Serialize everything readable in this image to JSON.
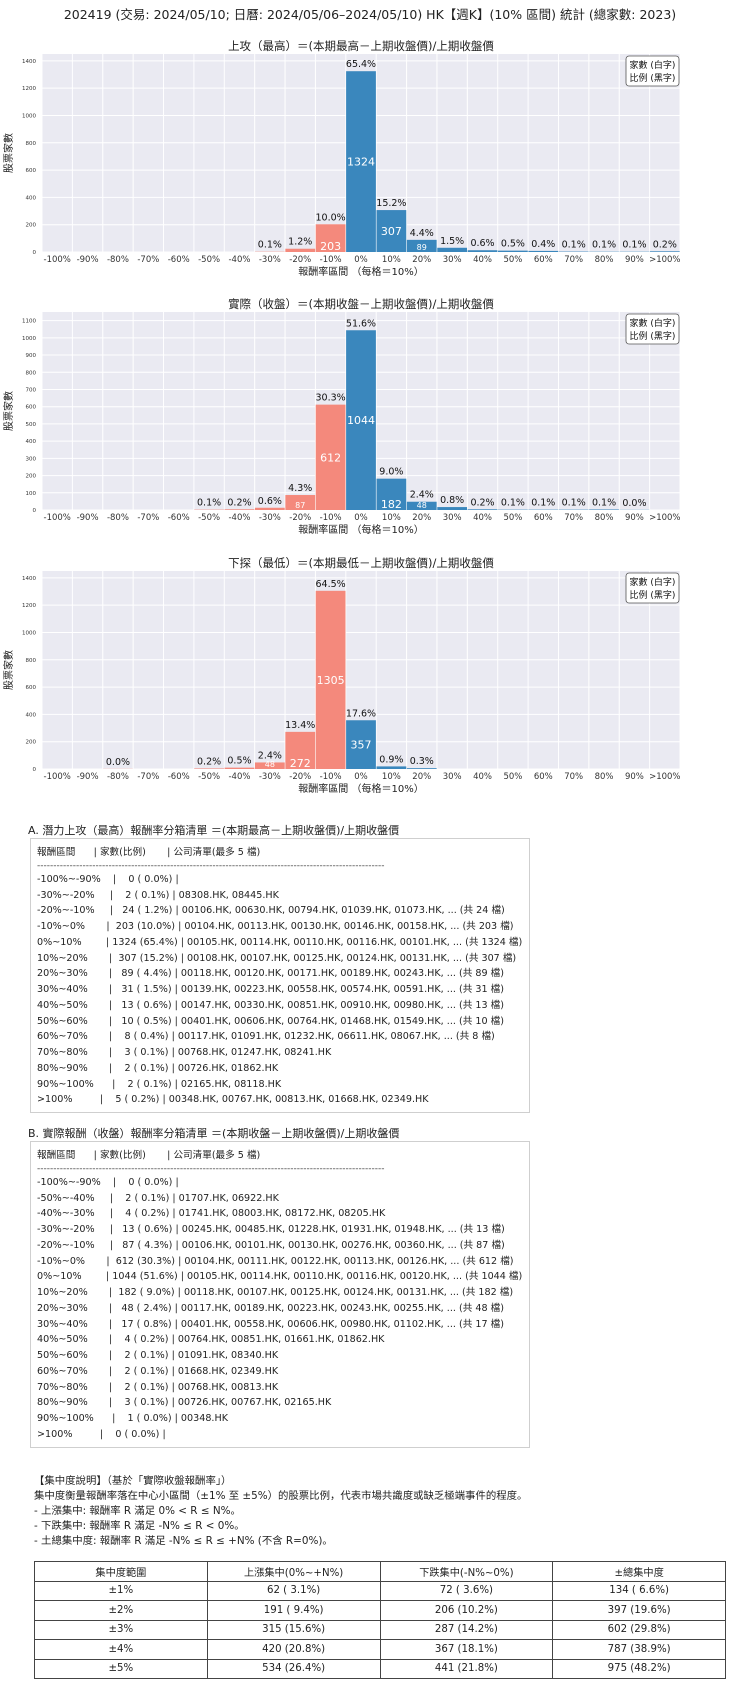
{
  "page_title": "202419 (交易: 2024/05/10; 日曆: 2024/05/06–2024/05/10) HK【週K】(10% 區間) 統計 (總家數: 2023)",
  "legend_lines": [
    "家數 (白字)",
    "比例 (黑字)"
  ],
  "colors": {
    "positive": "#3a87bd",
    "negative": "#f4897c",
    "plot_bg": "#eaeaf2"
  },
  "chart_data": [
    {
      "type": "bar",
      "title": "上攻（最高）＝(本期最高－上期收盤價)/上期收盤價",
      "xlabel": "報酬率區間 （每格＝10%）",
      "ylabel": "股票家數",
      "ylim": [
        0,
        1450
      ],
      "yticks": [
        0,
        200,
        400,
        600,
        800,
        1000,
        1200,
        1400
      ],
      "categories": [
        "-100%",
        "-90%",
        "-80%",
        "-70%",
        "-60%",
        "-50%",
        "-40%",
        "-30%",
        "-20%",
        "-10%",
        "0%",
        "10%",
        "20%",
        "30%",
        "40%",
        "50%",
        "60%",
        "70%",
        "80%",
        "90%",
        ">100%"
      ],
      "values": [
        0,
        0,
        0,
        0,
        0,
        0,
        0,
        2,
        24,
        203,
        1324,
        307,
        89,
        31,
        13,
        10,
        8,
        3,
        2,
        2,
        5
      ],
      "pct_labels": [
        "",
        "",
        "",
        "",
        "",
        "",
        "",
        "0.1%",
        "1.2%",
        "10.0%",
        "65.4%",
        "15.2%",
        "4.4%",
        "1.5%",
        "0.6%",
        "0.5%",
        "0.4%",
        "0.1%",
        "0.1%",
        "0.1%",
        "0.2%"
      ],
      "count_labels": [
        "",
        "",
        "",
        "",
        "",
        "",
        "",
        "",
        "",
        "203",
        "1324",
        "307",
        "89",
        "",
        "",
        "",
        "",
        "",
        "",
        "",
        ""
      ],
      "grid": true,
      "legend": "top-right"
    },
    {
      "type": "bar",
      "title": "實際（收盤）＝(本期收盤－上期收盤價)/上期收盤價",
      "xlabel": "報酬率區間 （每格＝10%）",
      "ylabel": "股票家數",
      "ylim": [
        0,
        1150
      ],
      "yticks": [
        0,
        100,
        200,
        300,
        400,
        500,
        600,
        700,
        800,
        900,
        1000,
        1100
      ],
      "categories": [
        "-100%",
        "-90%",
        "-80%",
        "-70%",
        "-60%",
        "-50%",
        "-40%",
        "-30%",
        "-20%",
        "-10%",
        "0%",
        "10%",
        "20%",
        "30%",
        "40%",
        "50%",
        "60%",
        "70%",
        "80%",
        "90%",
        ">100%"
      ],
      "values": [
        0,
        0,
        0,
        0,
        0,
        2,
        4,
        13,
        87,
        612,
        1044,
        182,
        48,
        17,
        4,
        2,
        2,
        2,
        3,
        1,
        0
      ],
      "pct_labels": [
        "",
        "",
        "",
        "",
        "",
        "0.1%",
        "0.2%",
        "0.6%",
        "4.3%",
        "30.3%",
        "51.6%",
        "9.0%",
        "2.4%",
        "0.8%",
        "0.2%",
        "0.1%",
        "0.1%",
        "0.1%",
        "0.1%",
        "0.0%",
        ""
      ],
      "count_labels": [
        "",
        "",
        "",
        "",
        "",
        "",
        "",
        "",
        "87",
        "612",
        "1044",
        "182",
        "48",
        "",
        "",
        "",
        "",
        "",
        "",
        "",
        ""
      ],
      "grid": true,
      "legend": "top-right"
    },
    {
      "type": "bar",
      "title": "下探（最低）＝(本期最低－上期收盤價)/上期收盤價",
      "xlabel": "報酬率區間 （每格＝10%）",
      "ylabel": "股票家數",
      "ylim": [
        0,
        1450
      ],
      "yticks": [
        0,
        200,
        400,
        600,
        800,
        1000,
        1200,
        1400
      ],
      "categories": [
        "-100%",
        "-90%",
        "-80%",
        "-70%",
        "-60%",
        "-50%",
        "-40%",
        "-30%",
        "-20%",
        "-10%",
        "0%",
        "10%",
        "20%",
        "30%",
        "40%",
        "50%",
        "60%",
        "70%",
        "80%",
        "90%",
        ">100%"
      ],
      "values": [
        0,
        0,
        1,
        0,
        0,
        4,
        10,
        48,
        272,
        1305,
        357,
        19,
        6,
        0,
        0,
        0,
        0,
        0,
        0,
        0,
        0
      ],
      "pct_labels": [
        "",
        "",
        "0.0%",
        "",
        "",
        "0.2%",
        "0.5%",
        "2.4%",
        "13.4%",
        "64.5%",
        "17.6%",
        "0.9%",
        "0.3%",
        "",
        "",
        "",
        "",
        "",
        "",
        "",
        ""
      ],
      "count_labels": [
        "",
        "",
        "",
        "",
        "",
        "",
        "",
        "48",
        "272",
        "1305",
        "357",
        "",
        "",
        "",
        "",
        "",
        "",
        "",
        "",
        "",
        ""
      ],
      "grid": true,
      "legend": "top-right"
    }
  ],
  "section_a": {
    "title": "A. 潛力上攻（最高）報酬率分箱清單 ＝(本期最高－上期收盤價)/上期收盤價",
    "header": "報酬區間      | 家數(比例)       | 公司清單(最多 5 檔)",
    "separator": "-----------------------------------------------------------------------------------------------------------",
    "rows": [
      "-100%~-90%    |    0 ( 0.0%) |",
      "-30%~-20%     |    2 ( 0.1%) | 08308.HK, 08445.HK",
      "-20%~-10%     |   24 ( 1.2%) | 00106.HK, 00630.HK, 00794.HK, 01039.HK, 01073.HK, ... (共 24 檔)",
      "-10%~0%       |  203 (10.0%) | 00104.HK, 00113.HK, 00130.HK, 00146.HK, 00158.HK, ... (共 203 檔)",
      "0%~10%        | 1324 (65.4%) | 00105.HK, 00114.HK, 00110.HK, 00116.HK, 00101.HK, ... (共 1324 檔)",
      "10%~20%       |  307 (15.2%) | 00108.HK, 00107.HK, 00125.HK, 00124.HK, 00131.HK, ... (共 307 檔)",
      "20%~30%       |   89 ( 4.4%) | 00118.HK, 00120.HK, 00171.HK, 00189.HK, 00243.HK, ... (共 89 檔)",
      "30%~40%       |   31 ( 1.5%) | 00139.HK, 00223.HK, 00558.HK, 00574.HK, 00591.HK, ... (共 31 檔)",
      "40%~50%       |   13 ( 0.6%) | 00147.HK, 00330.HK, 00851.HK, 00910.HK, 00980.HK, ... (共 13 檔)",
      "50%~60%       |   10 ( 0.5%) | 00401.HK, 00606.HK, 00764.HK, 01468.HK, 01549.HK, ... (共 10 檔)",
      "60%~70%       |    8 ( 0.4%) | 00117.HK, 01091.HK, 01232.HK, 06611.HK, 08067.HK, ... (共 8 檔)",
      "70%~80%       |    3 ( 0.1%) | 00768.HK, 01247.HK, 08241.HK",
      "80%~90%       |    2 ( 0.1%) | 00726.HK, 01862.HK",
      "90%~100%      |    2 ( 0.1%) | 02165.HK, 08118.HK",
      ">100%         |    5 ( 0.2%) | 00348.HK, 00767.HK, 00813.HK, 01668.HK, 02349.HK"
    ]
  },
  "section_b": {
    "title": "B. 實際報酬（收盤）報酬率分箱清單 ＝(本期收盤－上期收盤價)/上期收盤價",
    "header": "報酬區間      | 家數(比例)       | 公司清單(最多 5 檔)",
    "separator": "-----------------------------------------------------------------------------------------------------------",
    "rows": [
      "-100%~-90%    |    0 ( 0.0%) |",
      "-50%~-40%     |    2 ( 0.1%) | 01707.HK, 06922.HK",
      "-40%~-30%     |    4 ( 0.2%) | 01741.HK, 08003.HK, 08172.HK, 08205.HK",
      "-30%~-20%     |   13 ( 0.6%) | 00245.HK, 00485.HK, 01228.HK, 01931.HK, 01948.HK, ... (共 13 檔)",
      "-20%~-10%     |   87 ( 4.3%) | 00106.HK, 00101.HK, 00130.HK, 00276.HK, 00360.HK, ... (共 87 檔)",
      "-10%~0%       |  612 (30.3%) | 00104.HK, 00111.HK, 00122.HK, 00113.HK, 00126.HK, ... (共 612 檔)",
      "0%~10%        | 1044 (51.6%) | 00105.HK, 00114.HK, 00110.HK, 00116.HK, 00120.HK, ... (共 1044 檔)",
      "10%~20%       |  182 ( 9.0%) | 00118.HK, 00107.HK, 00125.HK, 00124.HK, 00131.HK, ... (共 182 檔)",
      "20%~30%       |   48 ( 2.4%) | 00117.HK, 00189.HK, 00223.HK, 00243.HK, 00255.HK, ... (共 48 檔)",
      "30%~40%       |   17 ( 0.8%) | 00401.HK, 00558.HK, 00606.HK, 00980.HK, 01102.HK, ... (共 17 檔)",
      "40%~50%       |    4 ( 0.2%) | 00764.HK, 00851.HK, 01661.HK, 01862.HK",
      "50%~60%       |    2 ( 0.1%) | 01091.HK, 08340.HK",
      "60%~70%       |    2 ( 0.1%) | 01668.HK, 02349.HK",
      "70%~80%       |    2 ( 0.1%) | 00768.HK, 00813.HK",
      "80%~90%       |    3 ( 0.1%) | 00726.HK, 00767.HK, 02165.HK",
      "90%~100%      |    1 ( 0.0%) | 00348.HK",
      ">100%         |    0 ( 0.0%) |"
    ]
  },
  "concentration": {
    "title": "【集中度說明】（基於「實際收盤報酬率」）",
    "desc": "集中度衡量報酬率落在中心小區間（±1% 至 ±5%）的股票比例，代表市場共識度或缺乏極端事件的程度。",
    "bullets": [
      " - 上漲集中: 報酬率 R 滿足 0% < R ≤ N%。",
      " - 下跌集中: 報酬率 R 滿足 -N% ≤ R < 0%。",
      " - 土總集中度: 報酬率 R 滿足 -N% ≤ R ≤ +N% (不含 R=0%)。"
    ],
    "headers": [
      "集中度範圍",
      "上漲集中(0%~+N%)",
      "下跌集中(-N%~0%)",
      "±總集中度"
    ],
    "rows": [
      [
        "±1%",
        "62 ( 3.1%)",
        "72 ( 3.6%)",
        "134 ( 6.6%)"
      ],
      [
        "±2%",
        "191 ( 9.4%)",
        "206 (10.2%)",
        "397 (19.6%)"
      ],
      [
        "±3%",
        "315 (15.6%)",
        "287 (14.2%)",
        "602 (29.8%)"
      ],
      [
        "±4%",
        "420 (20.8%)",
        "367 (18.1%)",
        "787 (38.9%)"
      ],
      [
        "±5%",
        "534 (26.4%)",
        "441 (21.8%)",
        "975 (48.2%)"
      ]
    ]
  }
}
